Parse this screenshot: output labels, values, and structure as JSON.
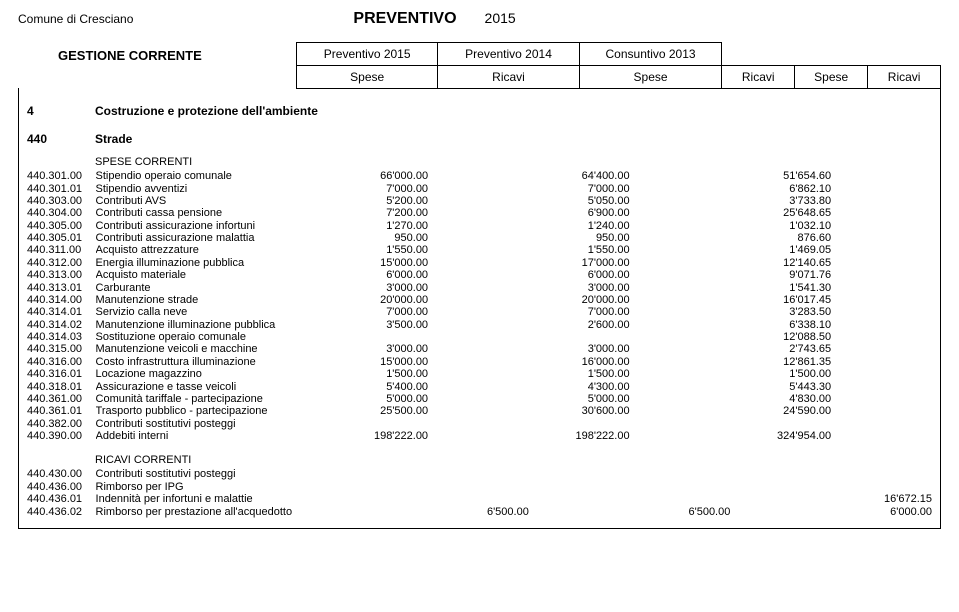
{
  "municipality": "Comune di Cresciano",
  "doc_title": "PREVENTIVO",
  "doc_year": "2015",
  "section_title": "GESTIONE CORRENTE",
  "col_groups": [
    "Preventivo 2015",
    "Preventivo 2014",
    "Consuntivo 2013"
  ],
  "col_subs": [
    "Spese",
    "Ricavi",
    "Spese",
    "Ricavi",
    "Spese",
    "Ricavi"
  ],
  "category": {
    "code": "4",
    "label": "Costruzione e protezione dell'ambiente"
  },
  "group": {
    "code": "440",
    "label": "Strade"
  },
  "spese_header": "SPESE CORRENTI",
  "spese_rows": [
    {
      "code": "440.301.00",
      "desc": "Stipendio operaio comunale",
      "v": [
        "66'000.00",
        "",
        "64'400.00",
        "",
        "51'654.60",
        ""
      ]
    },
    {
      "code": "440.301.01",
      "desc": "Stipendio avventizi",
      "v": [
        "7'000.00",
        "",
        "7'000.00",
        "",
        "6'862.10",
        ""
      ]
    },
    {
      "code": "440.303.00",
      "desc": "Contributi AVS",
      "v": [
        "5'200.00",
        "",
        "5'050.00",
        "",
        "3'733.80",
        ""
      ]
    },
    {
      "code": "440.304.00",
      "desc": "Contributi cassa pensione",
      "v": [
        "7'200.00",
        "",
        "6'900.00",
        "",
        "25'648.65",
        ""
      ]
    },
    {
      "code": "440.305.00",
      "desc": "Contributi assicurazione infortuni",
      "v": [
        "1'270.00",
        "",
        "1'240.00",
        "",
        "1'032.10",
        ""
      ]
    },
    {
      "code": "440.305.01",
      "desc": "Contributi assicurazione malattia",
      "v": [
        "950.00",
        "",
        "950.00",
        "",
        "876.60",
        ""
      ]
    },
    {
      "code": "440.311.00",
      "desc": "Acquisto attrezzature",
      "v": [
        "1'550.00",
        "",
        "1'550.00",
        "",
        "1'469.05",
        ""
      ]
    },
    {
      "code": "440.312.00",
      "desc": "Energia illuminazione pubblica",
      "v": [
        "15'000.00",
        "",
        "17'000.00",
        "",
        "12'140.65",
        ""
      ]
    },
    {
      "code": "440.313.00",
      "desc": "Acquisto materiale",
      "v": [
        "6'000.00",
        "",
        "6'000.00",
        "",
        "9'071.76",
        ""
      ]
    },
    {
      "code": "440.313.01",
      "desc": "Carburante",
      "v": [
        "3'000.00",
        "",
        "3'000.00",
        "",
        "1'541.30",
        ""
      ]
    },
    {
      "code": "440.314.00",
      "desc": "Manutenzione strade",
      "v": [
        "20'000.00",
        "",
        "20'000.00",
        "",
        "16'017.45",
        ""
      ]
    },
    {
      "code": "440.314.01",
      "desc": "Servizio calla neve",
      "v": [
        "7'000.00",
        "",
        "7'000.00",
        "",
        "3'283.50",
        ""
      ]
    },
    {
      "code": "440.314.02",
      "desc": "Manutenzione illuminazione pubblica",
      "v": [
        "3'500.00",
        "",
        "2'600.00",
        "",
        "6'338.10",
        ""
      ]
    },
    {
      "code": "440.314.03",
      "desc": "Sostituzione operaio comunale",
      "v": [
        "",
        "",
        "",
        "",
        "12'088.50",
        ""
      ]
    },
    {
      "code": "440.315.00",
      "desc": "Manutenzione veicoli e macchine",
      "v": [
        "3'000.00",
        "",
        "3'000.00",
        "",
        "2'743.65",
        ""
      ]
    },
    {
      "code": "440.316.00",
      "desc": "Costo infrastruttura illuminazione",
      "v": [
        "15'000.00",
        "",
        "16'000.00",
        "",
        "12'861.35",
        ""
      ]
    },
    {
      "code": "440.316.01",
      "desc": "Locazione magazzino",
      "v": [
        "1'500.00",
        "",
        "1'500.00",
        "",
        "1'500.00",
        ""
      ]
    },
    {
      "code": "440.318.01",
      "desc": "Assicurazione e tasse veicoli",
      "v": [
        "5'400.00",
        "",
        "4'300.00",
        "",
        "5'443.30",
        ""
      ]
    },
    {
      "code": "440.361.00",
      "desc": "Comunità tariffale - partecipazione",
      "v": [
        "5'000.00",
        "",
        "5'000.00",
        "",
        "4'830.00",
        ""
      ]
    },
    {
      "code": "440.361.01",
      "desc": "Trasporto pubblico - partecipazione",
      "v": [
        "25'500.00",
        "",
        "30'600.00",
        "",
        "24'590.00",
        ""
      ]
    },
    {
      "code": "440.382.00",
      "desc": "Contributi sostitutivi posteggi",
      "v": [
        "",
        "",
        "",
        "",
        "",
        ""
      ]
    },
    {
      "code": "440.390.00",
      "desc": "Addebiti interni",
      "v": [
        "198'222.00",
        "",
        "198'222.00",
        "",
        "324'954.00",
        ""
      ]
    }
  ],
  "ricavi_header": "RICAVI CORRENTI",
  "ricavi_rows": [
    {
      "code": "440.430.00",
      "desc": "Contributi sostitutivi posteggi",
      "v": [
        "",
        "",
        "",
        "",
        "",
        ""
      ]
    },
    {
      "code": "440.436.00",
      "desc": "Rimborso per IPG",
      "v": [
        "",
        "",
        "",
        "",
        "",
        ""
      ]
    },
    {
      "code": "440.436.01",
      "desc": "Indennità per infortuni e malattie",
      "v": [
        "",
        "",
        "",
        "",
        "",
        "16'672.15"
      ]
    },
    {
      "code": "440.436.02",
      "desc": "Rimborso per prestazione all'acquedotto",
      "v": [
        "",
        "6'500.00",
        "",
        "6'500.00",
        "",
        "6'000.00"
      ]
    }
  ]
}
